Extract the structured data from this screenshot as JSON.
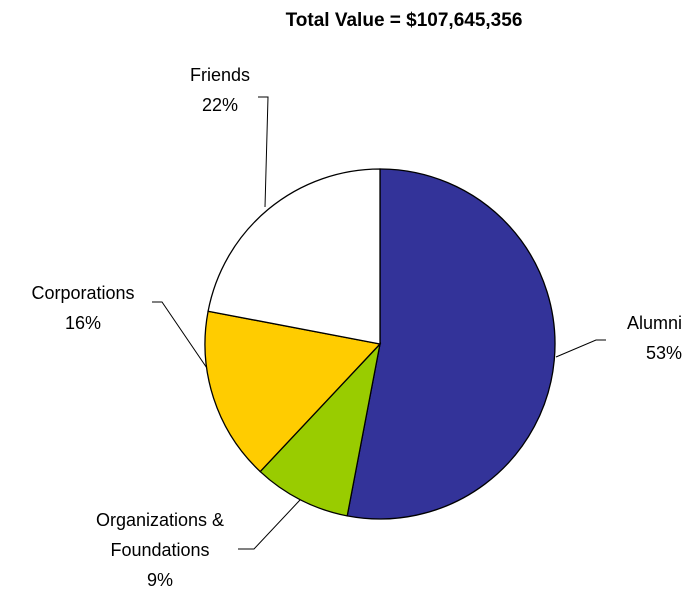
{
  "chart_data": {
    "type": "pie",
    "title": "Total Value = $107,645,356",
    "categories": [
      "Alumni",
      "Organizations & Foundations",
      "Corporations",
      "Friends"
    ],
    "values": [
      53,
      9,
      16,
      22
    ],
    "value_labels": [
      "53%",
      "9%",
      "16%",
      "22%"
    ],
    "colors": [
      "#333399",
      "#99cc00",
      "#ffcc00",
      "#ffffff"
    ]
  }
}
